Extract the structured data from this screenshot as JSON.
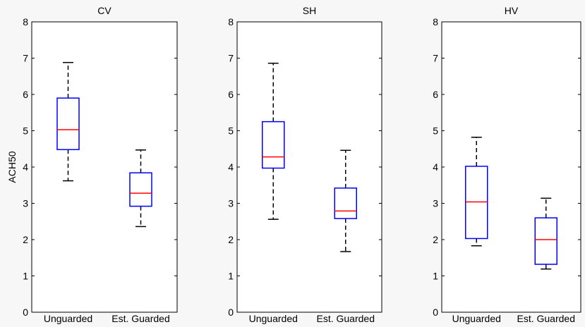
{
  "figure": {
    "ylabel": "ACH50"
  },
  "chart_data": [
    {
      "type": "box",
      "title": "CV",
      "categories": [
        "Unguarded",
        "Est. Guarded"
      ],
      "ylim": [
        0,
        8
      ],
      "yticks": [
        0,
        1,
        2,
        3,
        4,
        5,
        6,
        7,
        8
      ],
      "boxes": [
        {
          "whisker_low": 3.62,
          "q1": 4.48,
          "median": 5.03,
          "q3": 5.9,
          "whisker_high": 6.88
        },
        {
          "whisker_low": 2.36,
          "q1": 2.92,
          "median": 3.28,
          "q3": 3.84,
          "whisker_high": 4.47
        }
      ]
    },
    {
      "type": "box",
      "title": "SH",
      "categories": [
        "Unguarded",
        "Est. Guarded"
      ],
      "ylim": [
        0,
        8
      ],
      "yticks": [
        0,
        1,
        2,
        3,
        4,
        5,
        6,
        7,
        8
      ],
      "boxes": [
        {
          "whisker_low": 2.56,
          "q1": 3.97,
          "median": 4.28,
          "q3": 5.25,
          "whisker_high": 6.86
        },
        {
          "whisker_low": 1.67,
          "q1": 2.58,
          "median": 2.79,
          "q3": 3.42,
          "whisker_high": 4.46
        }
      ]
    },
    {
      "type": "box",
      "title": "HV",
      "categories": [
        "Unguarded",
        "Est. Guarded"
      ],
      "ylim": [
        0,
        8
      ],
      "yticks": [
        0,
        1,
        2,
        3,
        4,
        5,
        6,
        7,
        8
      ],
      "boxes": [
        {
          "whisker_low": 1.83,
          "q1": 2.03,
          "median": 3.04,
          "q3": 4.02,
          "whisker_high": 4.82
        },
        {
          "whisker_low": 1.19,
          "q1": 1.32,
          "median": 2.0,
          "q3": 2.6,
          "whisker_high": 3.14
        }
      ]
    }
  ],
  "colors": {
    "box": "#0000ff",
    "median": "#ff0000",
    "whisker": "#000000",
    "axes": "#000000",
    "plot_background": "#ffffff",
    "figure_background": "#f7f7f7"
  }
}
